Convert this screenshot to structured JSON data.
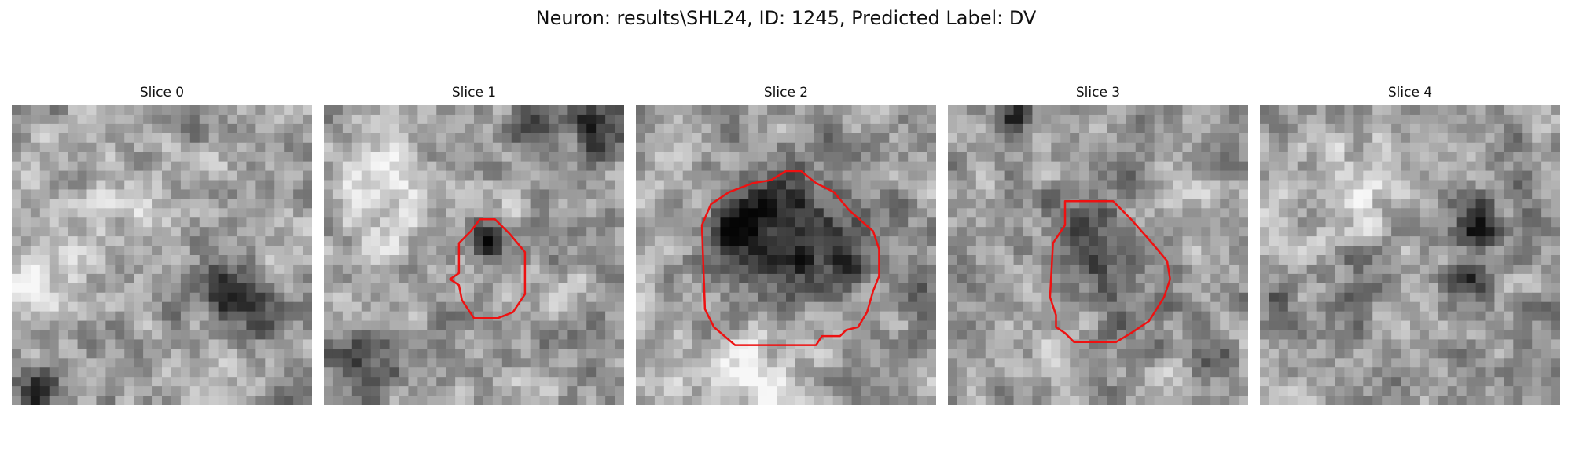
{
  "figure": {
    "title": "Neuron: results\\SHL24, ID: 1245, Predicted Label: DV"
  },
  "colors": {
    "contour": "#ee1111",
    "background": "#ffffff"
  },
  "panels": [
    {
      "title": "Slice 0",
      "has_contour": false,
      "seed": 11,
      "dark_blobs": [
        [
          0.72,
          0.63,
          0.09,
          0.55
        ],
        [
          0.85,
          0.72,
          0.08,
          0.25
        ],
        [
          0.08,
          0.95,
          0.08,
          0.35
        ]
      ],
      "light_blobs": [
        [
          0.1,
          0.6,
          0.14,
          0.25
        ],
        [
          0.35,
          0.3,
          0.2,
          0.15
        ]
      ]
    },
    {
      "title": "Slice 1",
      "has_contour": true,
      "seed": 23,
      "dark_blobs": [
        [
          0.55,
          0.45,
          0.07,
          0.45
        ],
        [
          0.92,
          0.08,
          0.1,
          0.5
        ],
        [
          0.7,
          0.05,
          0.08,
          0.3
        ],
        [
          0.15,
          0.85,
          0.12,
          0.3
        ]
      ],
      "light_blobs": [
        [
          0.2,
          0.3,
          0.18,
          0.25
        ]
      ],
      "contour": [
        [
          0.52,
          0.38
        ],
        [
          0.57,
          0.38
        ],
        [
          0.62,
          0.43
        ],
        [
          0.67,
          0.49
        ],
        [
          0.67,
          0.63
        ],
        [
          0.63,
          0.69
        ],
        [
          0.58,
          0.71
        ],
        [
          0.5,
          0.71
        ],
        [
          0.46,
          0.65
        ],
        [
          0.45,
          0.6
        ],
        [
          0.42,
          0.58
        ],
        [
          0.45,
          0.56
        ],
        [
          0.45,
          0.46
        ],
        [
          0.49,
          0.42
        ]
      ]
    },
    {
      "title": "Slice 2",
      "has_contour": true,
      "seed": 37,
      "dark_blobs": [
        [
          0.5,
          0.42,
          0.22,
          0.45
        ],
        [
          0.35,
          0.4,
          0.08,
          0.3
        ],
        [
          0.72,
          0.5,
          0.1,
          0.25
        ],
        [
          0.95,
          0.6,
          0.08,
          0.3
        ]
      ],
      "light_blobs": [
        [
          0.4,
          0.9,
          0.2,
          0.25
        ],
        [
          0.1,
          0.2,
          0.12,
          0.1
        ]
      ],
      "contour": [
        [
          0.5,
          0.22
        ],
        [
          0.55,
          0.22
        ],
        [
          0.6,
          0.26
        ],
        [
          0.66,
          0.29
        ],
        [
          0.71,
          0.35
        ],
        [
          0.79,
          0.42
        ],
        [
          0.81,
          0.48
        ],
        [
          0.81,
          0.57
        ],
        [
          0.79,
          0.62
        ],
        [
          0.77,
          0.69
        ],
        [
          0.74,
          0.74
        ],
        [
          0.7,
          0.75
        ],
        [
          0.68,
          0.77
        ],
        [
          0.62,
          0.77
        ],
        [
          0.6,
          0.8
        ],
        [
          0.33,
          0.8
        ],
        [
          0.26,
          0.74
        ],
        [
          0.23,
          0.68
        ],
        [
          0.22,
          0.4
        ],
        [
          0.25,
          0.33
        ],
        [
          0.31,
          0.29
        ],
        [
          0.39,
          0.26
        ],
        [
          0.45,
          0.25
        ]
      ]
    },
    {
      "title": "Slice 3",
      "has_contour": true,
      "seed": 53,
      "dark_blobs": [
        [
          0.47,
          0.44,
          0.14,
          0.35
        ],
        [
          0.23,
          0.04,
          0.05,
          0.55
        ],
        [
          0.9,
          0.85,
          0.07,
          0.35
        ],
        [
          0.55,
          0.65,
          0.08,
          0.25
        ]
      ],
      "light_blobs": [
        [
          0.8,
          0.3,
          0.12,
          0.12
        ]
      ],
      "contour": [
        [
          0.39,
          0.32
        ],
        [
          0.55,
          0.32
        ],
        [
          0.61,
          0.38
        ],
        [
          0.68,
          0.46
        ],
        [
          0.73,
          0.52
        ],
        [
          0.74,
          0.58
        ],
        [
          0.72,
          0.64
        ],
        [
          0.67,
          0.72
        ],
        [
          0.61,
          0.76
        ],
        [
          0.56,
          0.79
        ],
        [
          0.42,
          0.79
        ],
        [
          0.39,
          0.76
        ],
        [
          0.36,
          0.74
        ],
        [
          0.36,
          0.7
        ],
        [
          0.34,
          0.64
        ],
        [
          0.35,
          0.46
        ],
        [
          0.39,
          0.4
        ]
      ]
    },
    {
      "title": "Slice 4",
      "has_contour": false,
      "seed": 71,
      "dark_blobs": [
        [
          0.72,
          0.4,
          0.09,
          0.45
        ],
        [
          0.7,
          0.6,
          0.06,
          0.45
        ],
        [
          0.05,
          0.65,
          0.05,
          0.3
        ],
        [
          0.35,
          0.55,
          0.1,
          0.2
        ]
      ],
      "light_blobs": [
        [
          0.3,
          0.3,
          0.15,
          0.2
        ]
      ]
    }
  ]
}
